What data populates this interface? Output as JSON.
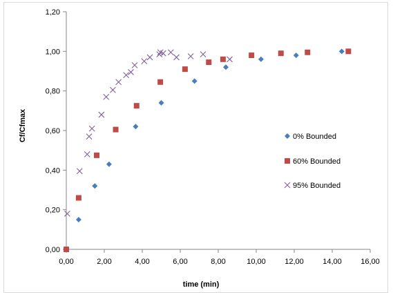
{
  "chart_data": {
    "type": "scatter",
    "title": "",
    "xlabel": "time (min)",
    "ylabel": "Cf/Cfmax",
    "xlim": [
      0,
      16
    ],
    "ylim": [
      0,
      1.2
    ],
    "x_ticks": [
      "0,00",
      "2,00",
      "4,00",
      "6,00",
      "8,00",
      "10,00",
      "12,00",
      "14,00",
      "16,00"
    ],
    "y_ticks": [
      "0,00",
      "0,20",
      "0,40",
      "0,60",
      "0,80",
      "1,00",
      "1,20"
    ],
    "grid": false,
    "legend_position": "right",
    "series": [
      {
        "name": "0% Bounded",
        "marker": "diamond",
        "color": "#4a7ebb",
        "points": [
          [
            0.0,
            0.0
          ],
          [
            0.65,
            0.15
          ],
          [
            1.5,
            0.32
          ],
          [
            2.25,
            0.43
          ],
          [
            3.65,
            0.62
          ],
          [
            5.0,
            0.74
          ],
          [
            6.75,
            0.85
          ],
          [
            8.4,
            0.92
          ],
          [
            10.25,
            0.96
          ],
          [
            12.1,
            0.98
          ],
          [
            14.5,
            1.0
          ]
        ]
      },
      {
        "name": "60% Bounded",
        "marker": "square",
        "color": "#be4b48",
        "points": [
          [
            0.0,
            0.0
          ],
          [
            0.65,
            0.26
          ],
          [
            1.6,
            0.475
          ],
          [
            2.6,
            0.605
          ],
          [
            3.7,
            0.725
          ],
          [
            4.95,
            0.845
          ],
          [
            6.25,
            0.91
          ],
          [
            7.5,
            0.945
          ],
          [
            8.25,
            0.96
          ],
          [
            9.75,
            0.98
          ],
          [
            11.3,
            0.99
          ],
          [
            12.7,
            0.995
          ],
          [
            14.85,
            1.0
          ]
        ]
      },
      {
        "name": "95% Bounded",
        "marker": "x",
        "color": "#7d60a0",
        "points": [
          [
            0.05,
            0.18
          ],
          [
            0.7,
            0.395
          ],
          [
            1.1,
            0.48
          ],
          [
            1.2,
            0.57
          ],
          [
            1.35,
            0.61
          ],
          [
            1.85,
            0.68
          ],
          [
            2.1,
            0.77
          ],
          [
            2.45,
            0.805
          ],
          [
            2.75,
            0.845
          ],
          [
            3.15,
            0.88
          ],
          [
            3.4,
            0.895
          ],
          [
            3.6,
            0.93
          ],
          [
            4.1,
            0.95
          ],
          [
            4.4,
            0.97
          ],
          [
            4.9,
            0.985
          ],
          [
            4.95,
            0.995
          ],
          [
            5.1,
            0.99
          ],
          [
            5.5,
            0.995
          ],
          [
            5.8,
            0.97
          ],
          [
            6.55,
            0.975
          ],
          [
            7.2,
            0.985
          ],
          [
            8.6,
            0.96
          ]
        ]
      }
    ]
  }
}
